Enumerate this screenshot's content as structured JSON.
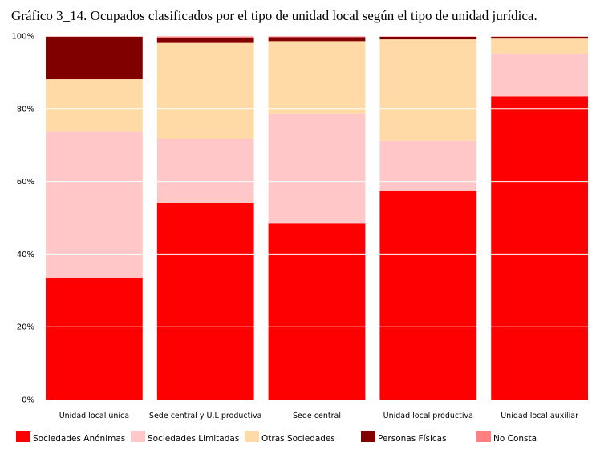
{
  "chart_data": {
    "type": "bar",
    "stacked": true,
    "percent": true,
    "title": "Gráfico 3_14. Ocupados clasificados por el tipo de unidad local según el tipo de unidad jurídica.",
    "ylim": [
      0,
      100
    ],
    "yticks": [
      "0%",
      "20%",
      "40%",
      "60%",
      "80%",
      "100%"
    ],
    "grid": true,
    "legend_position": "bottom",
    "categories": [
      "Unidad local única",
      "Sede central y U.L productiva",
      "Sede central",
      "Unidad local productiva",
      "Unidad local auxiliar"
    ],
    "series": [
      {
        "name": "Sociedades Anónimas",
        "color": "#ff0000",
        "values": [
          33.5,
          54.2,
          48.4,
          57.4,
          83.4
        ]
      },
      {
        "name": "Sociedades Limitadas",
        "color": "#ffc7c7",
        "values": [
          40.2,
          17.6,
          30.3,
          13.8,
          11.7
        ]
      },
      {
        "name": "Otras Sociedades",
        "color": "#ffdaa6",
        "values": [
          14.4,
          26.3,
          19.9,
          27.9,
          4.2
        ]
      },
      {
        "name": "Personas Físicas",
        "color": "#800000",
        "values": [
          11.7,
          1.5,
          1.1,
          0.7,
          0.5
        ]
      },
      {
        "name": "No Consta",
        "color": "#ff8080",
        "values": [
          0.2,
          0.4,
          0.3,
          0.2,
          0.2
        ]
      }
    ]
  }
}
